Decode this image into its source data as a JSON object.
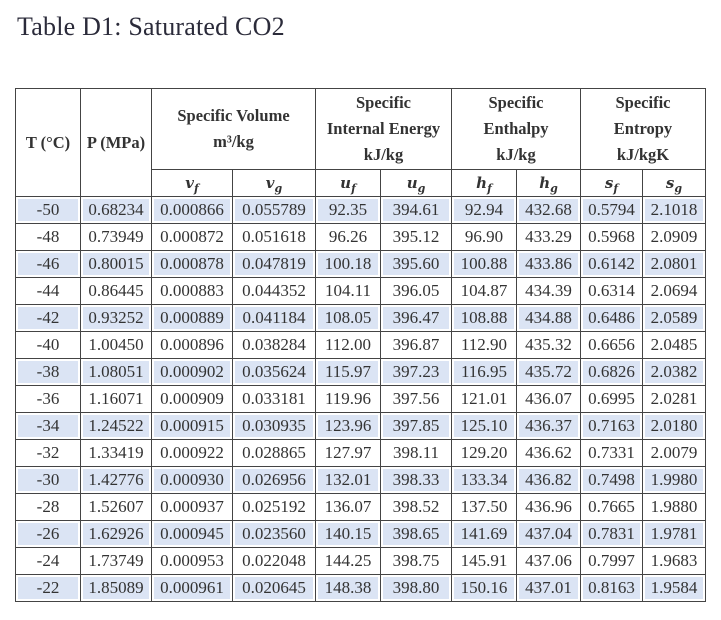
{
  "title": "Table D1: Saturated CO2",
  "header": {
    "t": "T (°C)",
    "p": "P (MPa)",
    "groups": [
      {
        "lines": [
          "Specific Volume",
          "m³/kg"
        ]
      },
      {
        "lines": [
          "Specific",
          "Internal Energy",
          "kJ/kg"
        ]
      },
      {
        "lines": [
          "Specific",
          "Enthalpy",
          "kJ/kg"
        ]
      },
      {
        "lines": [
          "Specific",
          "Entropy",
          "kJ/kgK"
        ]
      }
    ],
    "sub": [
      {
        "base": "v",
        "s": "f"
      },
      {
        "base": "v",
        "s": "g"
      },
      {
        "base": "u",
        "s": "f"
      },
      {
        "base": "u",
        "s": "g"
      },
      {
        "base": "h",
        "s": "f"
      },
      {
        "base": "h",
        "s": "g"
      },
      {
        "base": "s",
        "s": "f"
      },
      {
        "base": "s",
        "s": "g"
      }
    ]
  },
  "highlight_color": "#dbe4f4",
  "rows": [
    [
      "-50",
      "0.68234",
      "0.000866",
      "0.055789",
      "92.35",
      "394.61",
      "92.94",
      "432.68",
      "0.5794",
      "2.1018"
    ],
    [
      "-48",
      "0.73949",
      "0.000872",
      "0.051618",
      "96.26",
      "395.12",
      "96.90",
      "433.29",
      "0.5968",
      "2.0909"
    ],
    [
      "-46",
      "0.80015",
      "0.000878",
      "0.047819",
      "100.18",
      "395.60",
      "100.88",
      "433.86",
      "0.6142",
      "2.0801"
    ],
    [
      "-44",
      "0.86445",
      "0.000883",
      "0.044352",
      "104.11",
      "396.05",
      "104.87",
      "434.39",
      "0.6314",
      "2.0694"
    ],
    [
      "-42",
      "0.93252",
      "0.000889",
      "0.041184",
      "108.05",
      "396.47",
      "108.88",
      "434.88",
      "0.6486",
      "2.0589"
    ],
    [
      "-40",
      "1.00450",
      "0.000896",
      "0.038284",
      "112.00",
      "396.87",
      "112.90",
      "435.32",
      "0.6656",
      "2.0485"
    ],
    [
      "-38",
      "1.08051",
      "0.000902",
      "0.035624",
      "115.97",
      "397.23",
      "116.95",
      "435.72",
      "0.6826",
      "2.0382"
    ],
    [
      "-36",
      "1.16071",
      "0.000909",
      "0.033181",
      "119.96",
      "397.56",
      "121.01",
      "436.07",
      "0.6995",
      "2.0281"
    ],
    [
      "-34",
      "1.24522",
      "0.000915",
      "0.030935",
      "123.96",
      "397.85",
      "125.10",
      "436.37",
      "0.7163",
      "2.0180"
    ],
    [
      "-32",
      "1.33419",
      "0.000922",
      "0.028865",
      "127.97",
      "398.11",
      "129.20",
      "436.62",
      "0.7331",
      "2.0079"
    ],
    [
      "-30",
      "1.42776",
      "0.000930",
      "0.026956",
      "132.01",
      "398.33",
      "133.34",
      "436.82",
      "0.7498",
      "1.9980"
    ],
    [
      "-28",
      "1.52607",
      "0.000937",
      "0.025192",
      "136.07",
      "398.52",
      "137.50",
      "436.96",
      "0.7665",
      "1.9880"
    ],
    [
      "-26",
      "1.62926",
      "0.000945",
      "0.023560",
      "140.15",
      "398.65",
      "141.69",
      "437.04",
      "0.7831",
      "1.9781"
    ],
    [
      "-24",
      "1.73749",
      "0.000953",
      "0.022048",
      "144.25",
      "398.75",
      "145.91",
      "437.06",
      "0.7997",
      "1.9683"
    ],
    [
      "-22",
      "1.85089",
      "0.000961",
      "0.020645",
      "148.38",
      "398.80",
      "150.16",
      "437.01",
      "0.8163",
      "1.9584"
    ]
  ]
}
